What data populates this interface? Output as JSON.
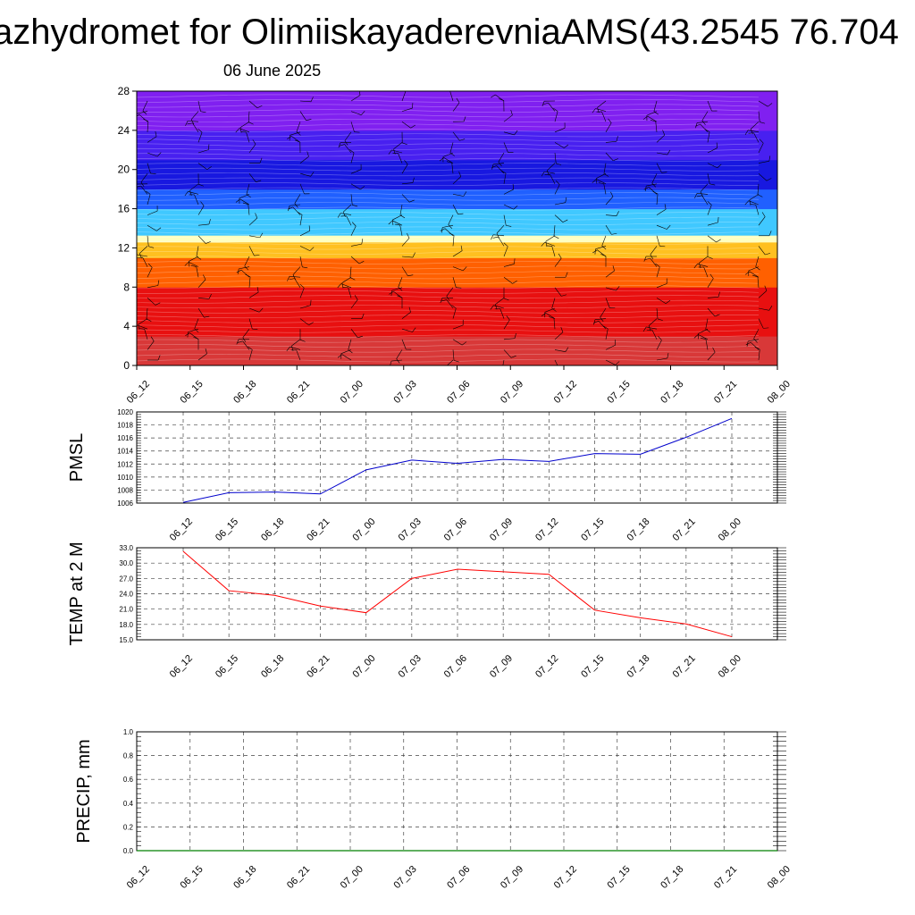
{
  "title": "azhydromet for OlimiiskayaderevniaAMS(43.2545 76.704",
  "subtitle": "06 June 2025",
  "chart_data": [
    {
      "type": "heatmap",
      "name": "vertical cross-section",
      "x": [
        "06_12",
        "06_15",
        "06_18",
        "06_21",
        "07_00",
        "07_03",
        "07_06",
        "07_09",
        "07_12",
        "07_15",
        "07_18",
        "07_21",
        "08_00"
      ],
      "ylim": [
        0,
        28
      ],
      "yticks": [
        "0",
        "4",
        "8",
        "12",
        "16",
        "20",
        "24",
        "28"
      ],
      "color_bands": [
        {
          "from": 0,
          "to": 3,
          "color": "#d83838"
        },
        {
          "from": 3,
          "to": 8,
          "color": "#e81010"
        },
        {
          "from": 8,
          "to": 11,
          "color": "#ff6000"
        },
        {
          "from": 11,
          "to": 12.6,
          "color": "#ffc020"
        },
        {
          "from": 12.6,
          "to": 13.3,
          "color": "#ffffc0"
        },
        {
          "from": 13.3,
          "to": 16,
          "color": "#40c8ff"
        },
        {
          "from": 16,
          "to": 18,
          "color": "#2060ff"
        },
        {
          "from": 18,
          "to": 21,
          "color": "#1818e0"
        },
        {
          "from": 21,
          "to": 24,
          "color": "#4820f0"
        },
        {
          "from": 24,
          "to": 28,
          "color": "#8020f0"
        }
      ],
      "wind_barbs": true
    },
    {
      "type": "line",
      "ylabel": "PMSL",
      "x": [
        "06_12",
        "06_15",
        "06_18",
        "06_21",
        "07_00",
        "07_03",
        "07_06",
        "07_09",
        "07_12",
        "07_15",
        "07_18",
        "07_21",
        "08_00"
      ],
      "ylim": [
        1006,
        1020
      ],
      "yticks": [
        "1006",
        "1008",
        "1010",
        "1012",
        "1014",
        "1016",
        "1018",
        "1020"
      ],
      "series": [
        {
          "values": [
            1006.1,
            1007.6,
            1007.7,
            1007.4,
            1011.1,
            1012.6,
            1012.1,
            1012.7,
            1012.4,
            1013.6,
            1013.5,
            1016.1,
            1019.0
          ],
          "color": "#0000cc"
        }
      ]
    },
    {
      "type": "line",
      "ylabel": "TEMP at 2 M",
      "x": [
        "06_12",
        "06_15",
        "06_18",
        "06_21",
        "07_00",
        "07_03",
        "07_06",
        "07_09",
        "07_12",
        "07_15",
        "07_18",
        "07_21",
        "08_00"
      ],
      "ylim": [
        15,
        33
      ],
      "yticks": [
        "15.0",
        "18.0",
        "21.0",
        "24.0",
        "27.0",
        "30.0",
        "33.0"
      ],
      "series": [
        {
          "values": [
            32.3,
            24.6,
            23.7,
            21.6,
            20.3,
            27.0,
            28.8,
            28.3,
            27.8,
            20.8,
            19.3,
            18.1,
            15.6
          ],
          "color": "#ff0000"
        }
      ]
    },
    {
      "type": "line",
      "ylabel": "PRECIP, mm",
      "x": [
        "06_12",
        "06_15",
        "06_18",
        "06_21",
        "07_00",
        "07_03",
        "07_06",
        "07_09",
        "07_12",
        "07_15",
        "07_18",
        "07_21",
        "08_00"
      ],
      "ylim": [
        0,
        1
      ],
      "yticks": [
        "0.0",
        "0.2",
        "0.4",
        "0.6",
        "0.8",
        "1.0"
      ],
      "series": [
        {
          "values": [
            0,
            0,
            0,
            0,
            0,
            0,
            0,
            0,
            0,
            0,
            0,
            0,
            0
          ],
          "color": "#008000"
        }
      ]
    }
  ]
}
